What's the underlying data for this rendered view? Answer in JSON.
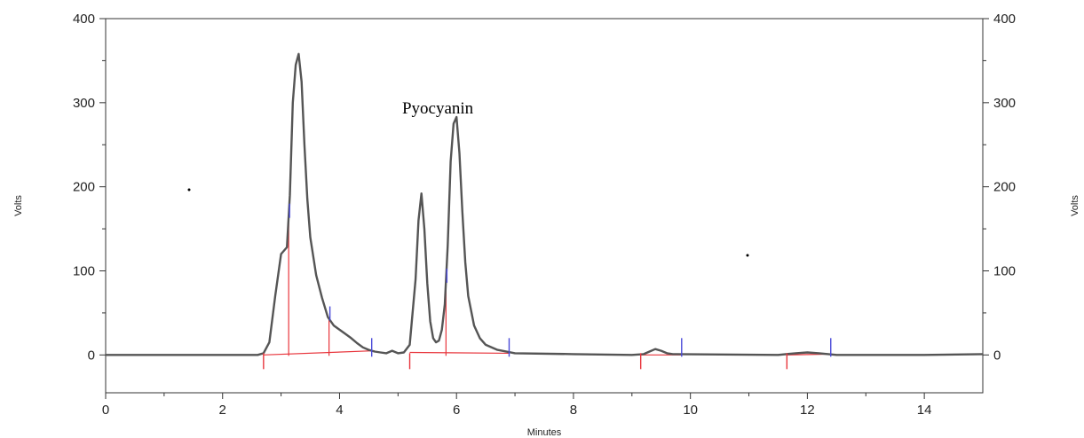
{
  "chart_data": {
    "type": "line",
    "title": "",
    "xlabel": "Minutes",
    "ylabel": "Volts",
    "y2label": "Volts",
    "xlim": [
      0,
      15
    ],
    "ylim": [
      -45,
      400
    ],
    "x_ticks": [
      "0",
      "2",
      "4",
      "6",
      "8",
      "10",
      "12",
      "14"
    ],
    "y_ticks": [
      "0",
      "100",
      "200",
      "300",
      "400"
    ],
    "grid": false,
    "series": [
      {
        "name": "",
        "x": [
          0,
          2.6,
          2.7,
          2.8,
          2.9,
          3.0,
          3.1,
          3.15,
          3.2,
          3.25,
          3.3,
          3.35,
          3.4,
          3.45,
          3.5,
          3.6,
          3.7,
          3.8,
          3.9,
          4.0,
          4.1,
          4.2,
          4.3,
          4.4,
          4.5,
          4.6,
          4.7,
          4.8,
          4.9,
          5.0,
          5.1,
          5.2,
          5.3,
          5.35,
          5.4,
          5.45,
          5.5,
          5.55,
          5.6,
          5.65,
          5.7,
          5.75,
          5.8,
          5.85,
          5.9,
          5.95,
          6.0,
          6.05,
          6.1,
          6.15,
          6.2,
          6.3,
          6.4,
          6.5,
          6.7,
          7.0,
          8.0,
          9.0,
          9.2,
          9.3,
          9.4,
          9.5,
          9.6,
          9.7,
          11.5,
          11.8,
          12.0,
          12.2,
          12.5,
          14.0,
          15.0
        ],
        "y": [
          0,
          0,
          2,
          15,
          70,
          120,
          128,
          190,
          300,
          345,
          358,
          325,
          250,
          185,
          140,
          95,
          68,
          45,
          35,
          30,
          25,
          20,
          14,
          9,
          6,
          4,
          3,
          2,
          5,
          2,
          3,
          12,
          90,
          160,
          192,
          150,
          85,
          40,
          20,
          15,
          17,
          30,
          60,
          130,
          230,
          275,
          283,
          240,
          170,
          110,
          70,
          35,
          20,
          12,
          6,
          2,
          1,
          0,
          1,
          4,
          7,
          5,
          2,
          1,
          0,
          2,
          3,
          2,
          0,
          0,
          1
        ]
      }
    ],
    "baselines": [
      {
        "x": [
          2.7,
          4.6
        ],
        "y": [
          0,
          5
        ]
      },
      {
        "x": [
          5.2,
          6.9
        ],
        "y": [
          3,
          2
        ]
      },
      {
        "x": [
          9.15,
          9.85
        ],
        "y": [
          0,
          0
        ]
      },
      {
        "x": [
          11.65,
          12.4
        ],
        "y": [
          0,
          1
        ]
      }
    ],
    "start_markers": [
      2.7,
      5.2,
      9.15,
      11.65
    ],
    "end_markers": [
      4.55,
      6.9,
      9.85,
      12.4
    ],
    "drop_lines": [
      3.13,
      3.82,
      5.82
    ],
    "annotations": [
      {
        "text": "Pyocyanin",
        "x": 5.07,
        "y": 285
      }
    ],
    "colors": {
      "trace": "#555555",
      "baseline": "#e8353c",
      "start_marker": "#e8353c",
      "end_marker": "#4a4ad8",
      "axis": "#333333"
    }
  }
}
